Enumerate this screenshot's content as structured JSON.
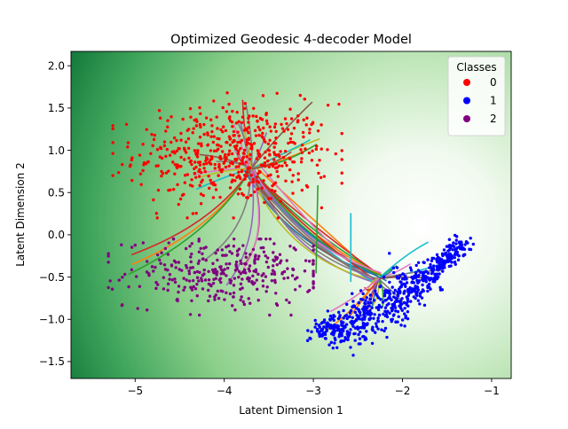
{
  "chart_data": {
    "type": "scatter",
    "title": "Optimized Geodesic 4-decoder Model",
    "xlabel": "Latent Dimension 1",
    "ylabel": "Latent Dimension 2",
    "xlim": [
      -5.72,
      -0.78
    ],
    "ylim": [
      -1.7,
      2.17
    ],
    "xticks": [
      -5,
      -4,
      -3,
      -2,
      -1
    ],
    "yticks": [
      -1.5,
      -1.0,
      -0.5,
      0.0,
      0.5,
      1.0,
      1.5,
      2.0
    ],
    "xtick_labels": [
      "−5",
      "−4",
      "−3",
      "−2",
      "−1"
    ],
    "ytick_labels": [
      "−1.5",
      "−1.0",
      "−0.5",
      "0.0",
      "0.5",
      "1.0",
      "1.5",
      "2.0"
    ],
    "grid": false,
    "background": "green gradient (darker green at upper-left and lower edges, near white around (-1.9, -0.2))",
    "legend": {
      "title": "Classes",
      "placement": "top-right",
      "entries": [
        {
          "label": "0",
          "color": "#ff0000"
        },
        {
          "label": "1",
          "color": "#0000ff"
        },
        {
          "label": "2",
          "color": "#800080"
        }
      ]
    },
    "clusters": [
      {
        "name": "0",
        "color": "#ff0000",
        "center": [
          -3.9,
          0.95
        ],
        "spread": [
          0.55,
          0.3
        ],
        "count": 520,
        "region": "x from -5.2 to -2.7, y from 0.2 to 1.65"
      },
      {
        "name": "1",
        "color": "#0000ff",
        "center": [
          -2.3,
          -0.65
        ],
        "spread": [
          0.35,
          0.2
        ],
        "count": 650,
        "region": "band from (-3.0, -1.15) to (-1.3, -0.1)"
      },
      {
        "name": "2",
        "color": "#800080",
        "center": [
          -4.0,
          -0.45
        ],
        "spread": [
          0.55,
          0.2
        ],
        "count": 330,
        "region": "x from -5.3 to -3.0, y from -0.95 to -0.1"
      }
    ],
    "geodesic_hubs": [
      {
        "name": "upper hub",
        "x": -3.7,
        "y": 0.78
      },
      {
        "name": "lower hub",
        "x": -2.27,
        "y": -0.52
      }
    ],
    "geodesic_colors": [
      "#1f77b4",
      "#ff7f0e",
      "#2ca02c",
      "#d62728",
      "#9467bd",
      "#8c564b",
      "#e377c2",
      "#7f7f7f",
      "#bcbd22",
      "#17becf"
    ]
  }
}
